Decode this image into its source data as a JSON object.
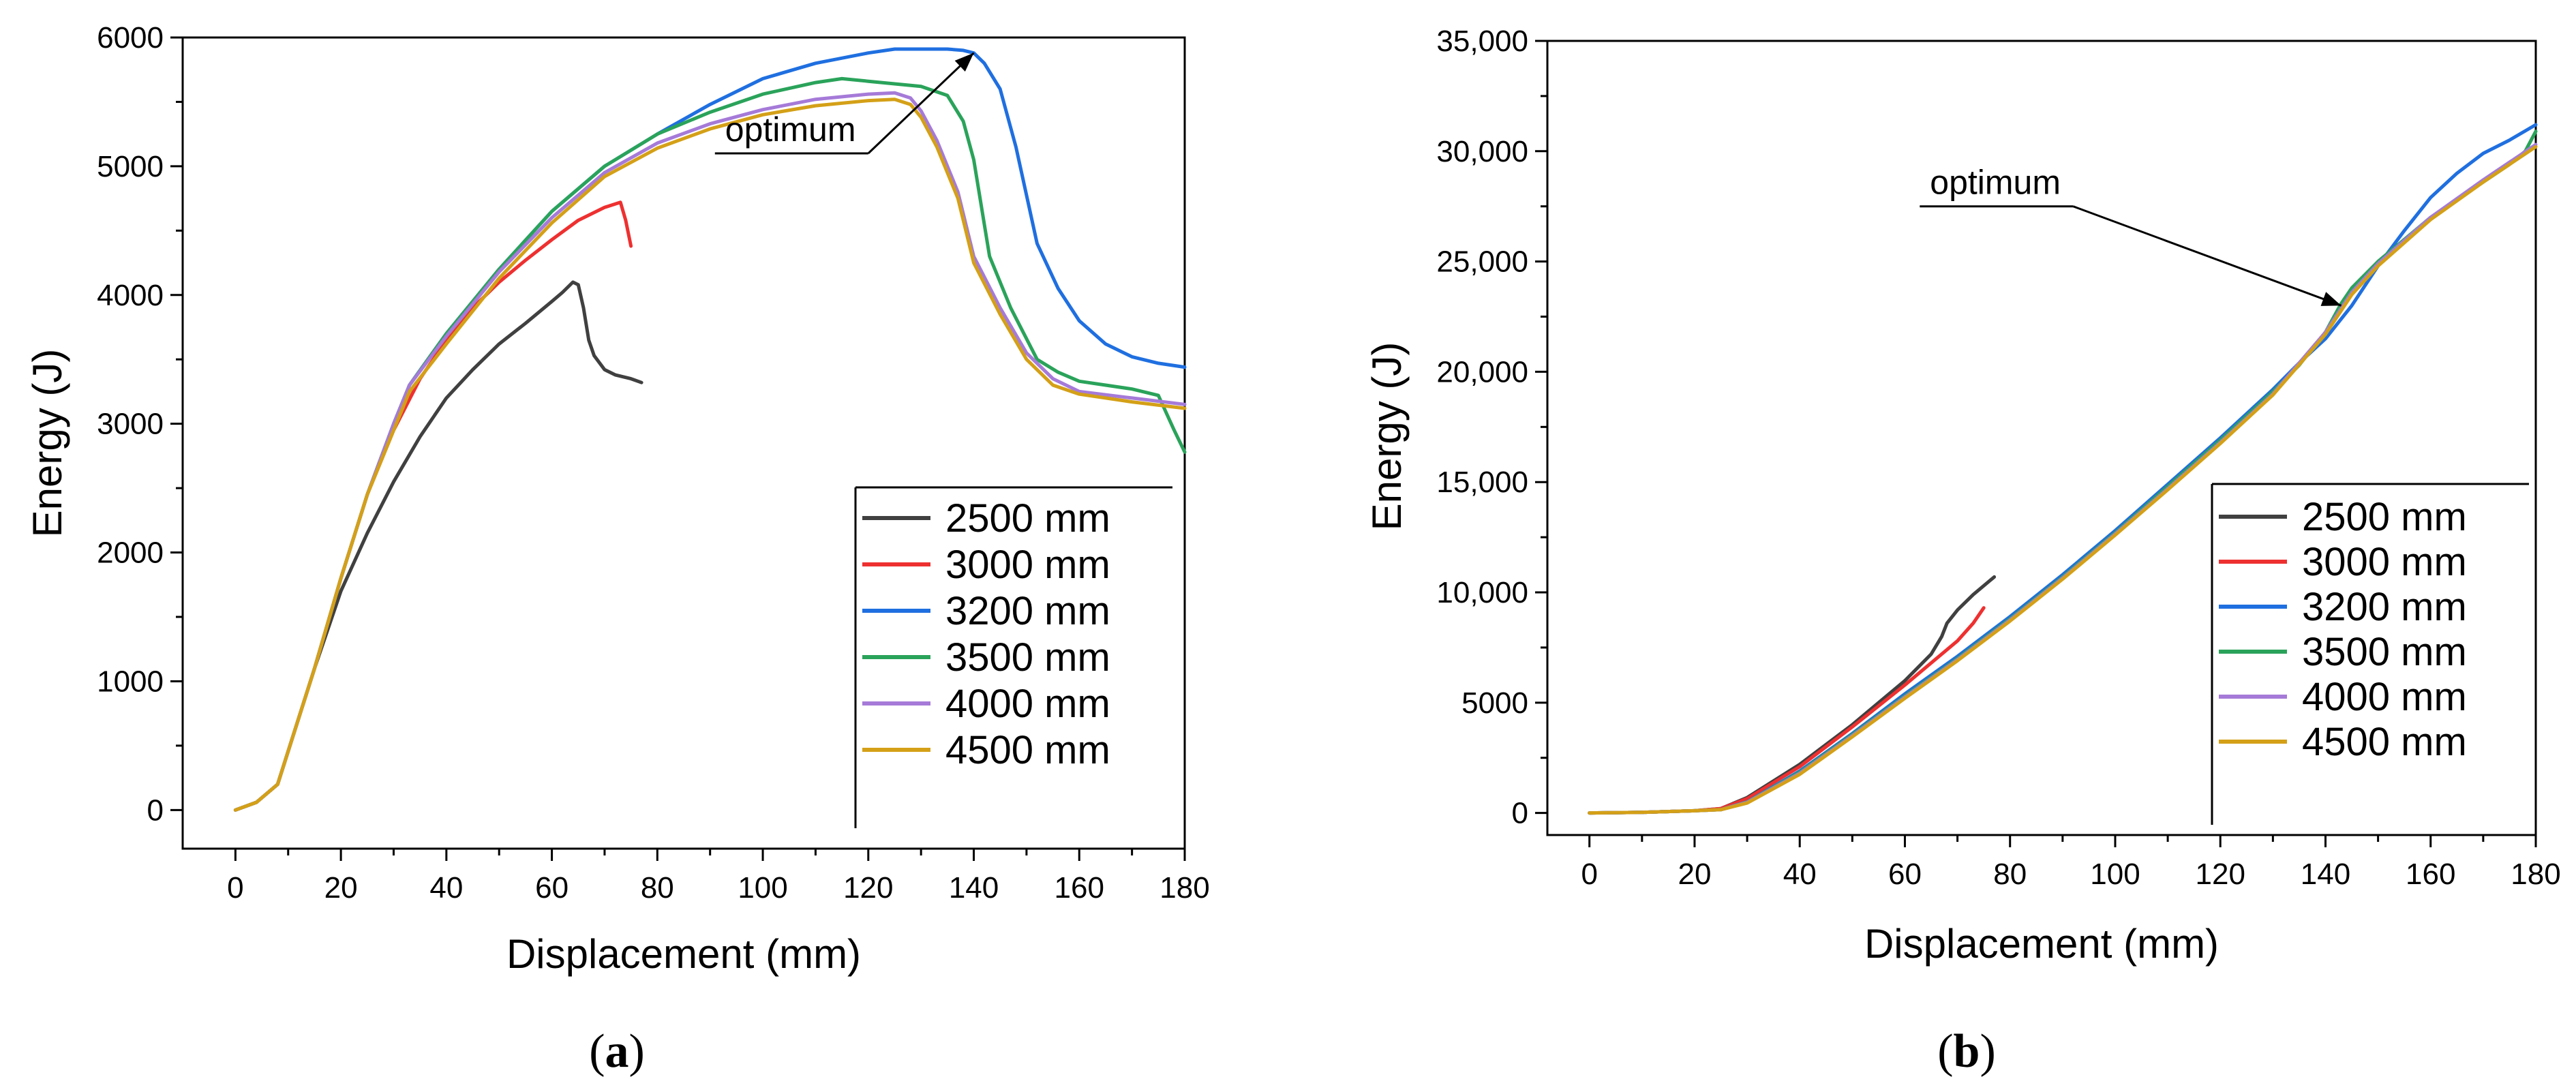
{
  "figure": {
    "panel_labels": [
      {
        "open": "(",
        "letter": "a",
        "close": ")"
      },
      {
        "open": "(",
        "letter": "b",
        "close": ")"
      }
    ],
    "colors": {
      "2500 mm": "#404040",
      "3000 mm": "#ee3030",
      "3200 mm": "#1f6fe0",
      "3500 mm": "#2aa35a",
      "4000 mm": "#a57ad8",
      "4500 mm": "#d4a017"
    }
  },
  "chart_data": [
    {
      "type": "line",
      "title": "",
      "xlabel": "Displacement (mm)",
      "ylabel": "Energy (J)",
      "xlim": [
        -10,
        180
      ],
      "ylim": [
        -300,
        6000
      ],
      "xticks": [
        0,
        20,
        40,
        60,
        80,
        100,
        120,
        140,
        160,
        180
      ],
      "xtick_labels": [
        "0",
        "20",
        "40",
        "60",
        "80",
        "100",
        "120",
        "140",
        "160",
        "180"
      ],
      "yticks": [
        0,
        1000,
        2000,
        3000,
        4000,
        5000,
        6000
      ],
      "ytick_labels": [
        "0",
        "1000",
        "2000",
        "3000",
        "4000",
        "5000",
        "6000"
      ],
      "legend": "bottom-right",
      "annotation": {
        "text": "optimum",
        "target": [
          140,
          5880
        ],
        "text_at": [
          120,
          5100
        ]
      },
      "series": [
        {
          "name": "2500 mm",
          "x": [
            0,
            4,
            8,
            15,
            20,
            25,
            30,
            35,
            40,
            45,
            50,
            55,
            60,
            62,
            64,
            65,
            66,
            67,
            68,
            70,
            72,
            75,
            77
          ],
          "y": [
            0,
            60,
            200,
            1100,
            1700,
            2150,
            2550,
            2900,
            3200,
            3420,
            3620,
            3780,
            3950,
            4020,
            4100,
            4080,
            3900,
            3650,
            3530,
            3420,
            3380,
            3350,
            3320
          ]
        },
        {
          "name": "3000 mm",
          "x": [
            0,
            4,
            8,
            15,
            20,
            25,
            30,
            35,
            40,
            45,
            50,
            55,
            60,
            65,
            70,
            73,
            74,
            75
          ],
          "y": [
            0,
            60,
            200,
            1100,
            1800,
            2450,
            2950,
            3350,
            3650,
            3900,
            4100,
            4270,
            4430,
            4580,
            4680,
            4720,
            4580,
            4380
          ]
        },
        {
          "name": "3200 mm",
          "x": [
            0,
            4,
            8,
            15,
            20,
            25,
            30,
            33,
            40,
            50,
            60,
            70,
            80,
            90,
            100,
            110,
            120,
            125,
            130,
            135,
            138,
            140,
            142,
            145,
            148,
            152,
            156,
            160,
            165,
            170,
            175,
            180
          ],
          "y": [
            0,
            60,
            200,
            1100,
            1800,
            2450,
            3000,
            3300,
            3700,
            4200,
            4650,
            5000,
            5250,
            5480,
            5680,
            5800,
            5880,
            5910,
            5910,
            5910,
            5900,
            5880,
            5800,
            5600,
            5150,
            4400,
            4050,
            3800,
            3620,
            3520,
            3470,
            3440
          ]
        },
        {
          "name": "3500 mm",
          "x": [
            0,
            4,
            8,
            15,
            20,
            25,
            30,
            33,
            40,
            50,
            60,
            70,
            80,
            90,
            100,
            110,
            115,
            120,
            125,
            130,
            135,
            138,
            140,
            143,
            147,
            152,
            156,
            160,
            165,
            170,
            175,
            178,
            180
          ],
          "y": [
            0,
            60,
            200,
            1100,
            1800,
            2450,
            3000,
            3300,
            3700,
            4200,
            4650,
            5000,
            5250,
            5420,
            5560,
            5650,
            5680,
            5660,
            5640,
            5620,
            5550,
            5350,
            5050,
            4300,
            3900,
            3500,
            3400,
            3330,
            3300,
            3270,
            3220,
            2950,
            2780
          ]
        },
        {
          "name": "4000 mm",
          "x": [
            0,
            4,
            8,
            15,
            20,
            25,
            30,
            33,
            40,
            50,
            60,
            70,
            80,
            90,
            100,
            110,
            120,
            125,
            128,
            130,
            133,
            137,
            140,
            145,
            150,
            155,
            160,
            170,
            180
          ],
          "y": [
            0,
            60,
            200,
            1100,
            1800,
            2450,
            3000,
            3300,
            3680,
            4180,
            4600,
            4950,
            5180,
            5330,
            5440,
            5520,
            5560,
            5570,
            5530,
            5430,
            5200,
            4800,
            4300,
            3900,
            3550,
            3350,
            3250,
            3200,
            3150
          ]
        },
        {
          "name": "4500 mm",
          "x": [
            0,
            4,
            8,
            15,
            20,
            25,
            30,
            33,
            40,
            50,
            60,
            70,
            80,
            90,
            100,
            110,
            120,
            125,
            128,
            130,
            133,
            137,
            140,
            145,
            150,
            155,
            160,
            170,
            180
          ],
          "y": [
            0,
            60,
            200,
            1100,
            1800,
            2450,
            2950,
            3250,
            3620,
            4130,
            4560,
            4920,
            5140,
            5290,
            5400,
            5470,
            5510,
            5520,
            5480,
            5380,
            5150,
            4750,
            4250,
            3850,
            3500,
            3300,
            3230,
            3170,
            3120
          ]
        }
      ],
      "legend_labels": [
        "2500 mm",
        "3000 mm",
        "3200 mm",
        "3500 mm",
        "4000 mm",
        "4500 mm"
      ]
    },
    {
      "type": "line",
      "title": "",
      "xlabel": "Displacement (mm)",
      "ylabel": "Energy (J)",
      "xlim": [
        -8,
        180
      ],
      "ylim": [
        -1000,
        35000
      ],
      "xticks": [
        0,
        20,
        40,
        60,
        80,
        100,
        120,
        140,
        160,
        180
      ],
      "xtick_labels": [
        "0",
        "20",
        "40",
        "60",
        "80",
        "100",
        "120",
        "140",
        "160",
        "180"
      ],
      "yticks": [
        0,
        5000,
        10000,
        15000,
        20000,
        25000,
        30000,
        35000
      ],
      "ytick_labels": [
        "0",
        "5000",
        "10,000",
        "15,000",
        "20,000",
        "25,000",
        "30,000",
        "35,000"
      ],
      "legend": "bottom-right",
      "annotation": {
        "text": "optimum",
        "target": [
          143,
          23000
        ],
        "text_at": [
          92,
          27500
        ]
      },
      "series": [
        {
          "name": "2500 mm",
          "x": [
            0,
            10,
            20,
            25,
            30,
            40,
            50,
            60,
            65,
            67,
            68,
            70,
            73,
            77
          ],
          "y": [
            0,
            30,
            100,
            200,
            700,
            2200,
            4000,
            6000,
            7200,
            8000,
            8600,
            9200,
            9900,
            10700
          ]
        },
        {
          "name": "3000 mm",
          "x": [
            0,
            10,
            20,
            25,
            30,
            40,
            50,
            60,
            65,
            70,
            73,
            75
          ],
          "y": [
            0,
            30,
            100,
            200,
            650,
            2100,
            3900,
            5800,
            6800,
            7800,
            8600,
            9300
          ]
        },
        {
          "name": "3200 mm",
          "x": [
            0,
            10,
            20,
            25,
            30,
            40,
            50,
            60,
            70,
            80,
            90,
            100,
            110,
            120,
            130,
            135,
            140,
            145,
            150,
            155,
            160,
            165,
            170,
            175,
            180
          ],
          "y": [
            0,
            30,
            100,
            150,
            500,
            1900,
            3600,
            5400,
            7100,
            8900,
            10800,
            12800,
            14900,
            17000,
            19200,
            20400,
            21500,
            23000,
            24800,
            26400,
            27900,
            29000,
            29900,
            30500,
            31200
          ]
        },
        {
          "name": "3500 mm",
          "x": [
            0,
            10,
            20,
            25,
            30,
            40,
            50,
            60,
            70,
            80,
            90,
            100,
            110,
            120,
            130,
            135,
            140,
            143,
            145,
            150,
            155,
            160,
            165,
            170,
            175,
            178,
            180
          ],
          "y": [
            0,
            30,
            100,
            150,
            500,
            1850,
            3550,
            5300,
            7000,
            8800,
            10700,
            12700,
            14800,
            16900,
            19100,
            20300,
            21800,
            23100,
            23800,
            25000,
            26000,
            27000,
            27800,
            28600,
            29400,
            30000,
            30900
          ]
        },
        {
          "name": "4000 mm",
          "x": [
            0,
            10,
            20,
            25,
            30,
            40,
            50,
            60,
            70,
            80,
            90,
            100,
            110,
            120,
            130,
            140,
            145,
            150,
            160,
            170,
            180
          ],
          "y": [
            0,
            30,
            100,
            150,
            480,
            1800,
            3500,
            5250,
            6950,
            8750,
            10650,
            12650,
            14700,
            16800,
            19000,
            21800,
            23600,
            24900,
            27000,
            28700,
            30300
          ]
        },
        {
          "name": "4500 mm",
          "x": [
            0,
            10,
            20,
            25,
            30,
            40,
            50,
            60,
            70,
            80,
            90,
            100,
            110,
            120,
            130,
            140,
            145,
            150,
            160,
            170,
            180
          ],
          "y": [
            0,
            30,
            100,
            150,
            450,
            1750,
            3450,
            5200,
            6900,
            8700,
            10600,
            12600,
            14650,
            16750,
            18950,
            21700,
            23500,
            24800,
            26900,
            28600,
            30200
          ]
        }
      ],
      "legend_labels": [
        "2500 mm",
        "3000 mm",
        "3200 mm",
        "3500 mm",
        "4000 mm",
        "4500 mm"
      ]
    }
  ]
}
